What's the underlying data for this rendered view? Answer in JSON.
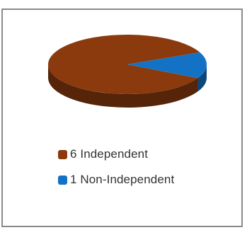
{
  "chart_data": {
    "type": "pie",
    "style": "3d",
    "categories": [
      "Independent",
      "Non-Independent"
    ],
    "values": [
      6,
      1
    ],
    "colors": [
      "#8B3A0E",
      "#1472C4"
    ],
    "legend": {
      "placement": "bottom-left",
      "entries": [
        "6 Independent",
        "1 Non-Independent"
      ]
    }
  }
}
